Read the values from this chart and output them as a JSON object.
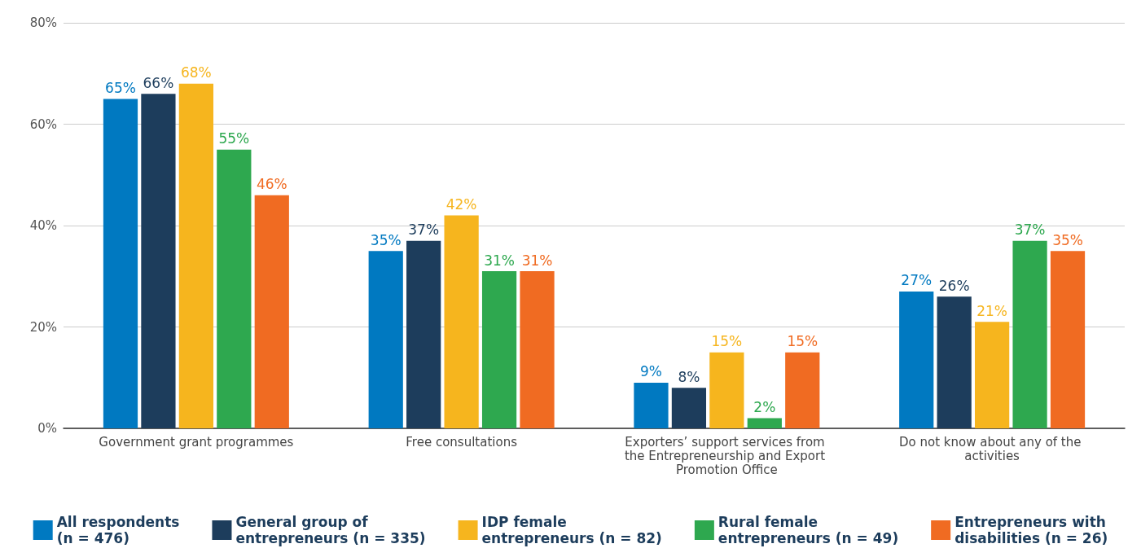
{
  "chart_data": {
    "type": "bar",
    "categories": [
      "Government grant programmes",
      "Free consultations",
      "Exporters’ support services from the Entrepreneurship and Export Promotion Office",
      "Do not know about any of the activities"
    ],
    "series": [
      {
        "name": "All respondents\n(n = 476)",
        "color": "#0079c1",
        "values": [
          65,
          35,
          9,
          27
        ],
        "value_labels": [
          "65%",
          "35%",
          "9%",
          "27%"
        ]
      },
      {
        "name": "General group of\nentrepreneurs (n = 335)",
        "color": "#1d3d5c",
        "values": [
          66,
          37,
          8,
          26
        ],
        "value_labels": [
          "66%",
          "37%",
          "8%",
          "26%"
        ]
      },
      {
        "name": "IDP female\nentrepreneurs (n = 82)",
        "color": "#f6b51e",
        "values": [
          68,
          42,
          15,
          21
        ],
        "value_labels": [
          "68%",
          "42%",
          "15%",
          "21%"
        ]
      },
      {
        "name": "Rural female\nentrepreneurs (n = 49)",
        "color": "#2ea84f",
        "values": [
          55,
          31,
          2,
          37
        ],
        "value_labels": [
          "55%",
          "31%",
          "2%",
          "37%"
        ]
      },
      {
        "name": "Entrepreneurs with\ndisabilities (n = 26)",
        "color": "#f06b22",
        "values": [
          46,
          31,
          15,
          35
        ],
        "value_labels": [
          "46%",
          "31%",
          "15%",
          "35%"
        ]
      }
    ],
    "ylim": [
      0,
      80
    ],
    "yticks": [
      {
        "value": 0,
        "label": "0%"
      },
      {
        "value": 20,
        "label": "20%"
      },
      {
        "value": 40,
        "label": "40%"
      },
      {
        "value": 60,
        "label": "60%"
      },
      {
        "value": 80,
        "label": "80%"
      }
    ],
    "grid": "y",
    "legend": "bottom"
  }
}
